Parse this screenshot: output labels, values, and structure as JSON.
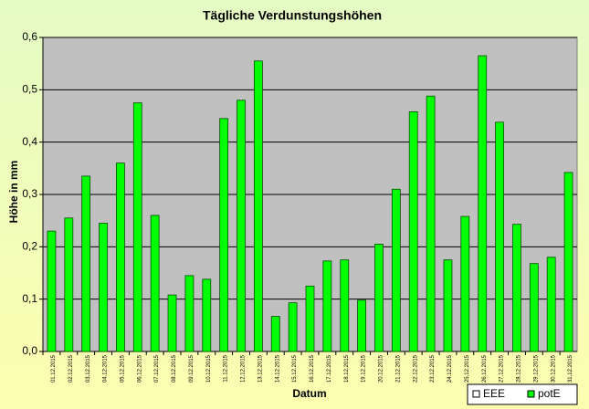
{
  "chart_data": {
    "type": "bar",
    "title": "Tägliche Verdunstungshöhen",
    "x_label": "Datum",
    "y_label": "Höhe in mm",
    "categories": [
      "01.12.2015",
      "02.12.2015",
      "03.12.2015",
      "04.12.2015",
      "05.12.2015",
      "06.12.2015",
      "07.12.2015",
      "08.12.2015",
      "09.12.2015",
      "10.12.2015",
      "11.12.2015",
      "12.12.2015",
      "13.12.2015",
      "14.12.2015",
      "15.12.2015",
      "16.12.2015",
      "17.12.2015",
      "18.12.2015",
      "19.12.2015",
      "20.12.2015",
      "21.12.2015",
      "22.12.2015",
      "23.12.2015",
      "24.12.2015",
      "25.12.2015",
      "26.12.2015",
      "27.12.2015",
      "28.12.2015",
      "29.12.2015",
      "30.12.2015",
      "31.12.2015"
    ],
    "series": [
      {
        "name": "EEE",
        "color": "#ffffff",
        "values": [
          null,
          null,
          null,
          null,
          null,
          null,
          null,
          null,
          null,
          null,
          null,
          null,
          null,
          null,
          null,
          null,
          null,
          null,
          null,
          null,
          null,
          null,
          null,
          null,
          null,
          null,
          null,
          null,
          null,
          null,
          null
        ]
      },
      {
        "name": "potE",
        "color": "#00ff00",
        "values": [
          0.23,
          0.255,
          0.335,
          0.245,
          0.36,
          0.475,
          0.26,
          0.108,
          0.145,
          0.138,
          0.445,
          0.48,
          0.555,
          0.067,
          0.093,
          0.125,
          0.173,
          0.175,
          0.098,
          0.205,
          0.31,
          0.458,
          0.488,
          0.175,
          0.258,
          0.565,
          0.438,
          0.243,
          0.168,
          0.18,
          0.342
        ]
      }
    ],
    "ylim": [
      0,
      0.6
    ],
    "yticks": [
      {
        "value": 0,
        "label": "0,0"
      },
      {
        "value": 0.1,
        "label": "0,1"
      },
      {
        "value": 0.2,
        "label": "0,2"
      },
      {
        "value": 0.3,
        "label": "0,3"
      },
      {
        "value": 0.4,
        "label": "0,4"
      },
      {
        "value": 0.5,
        "label": "0,5"
      },
      {
        "value": 0.6,
        "label": "0,6"
      }
    ],
    "grid": true,
    "legend": "bottom-right"
  }
}
